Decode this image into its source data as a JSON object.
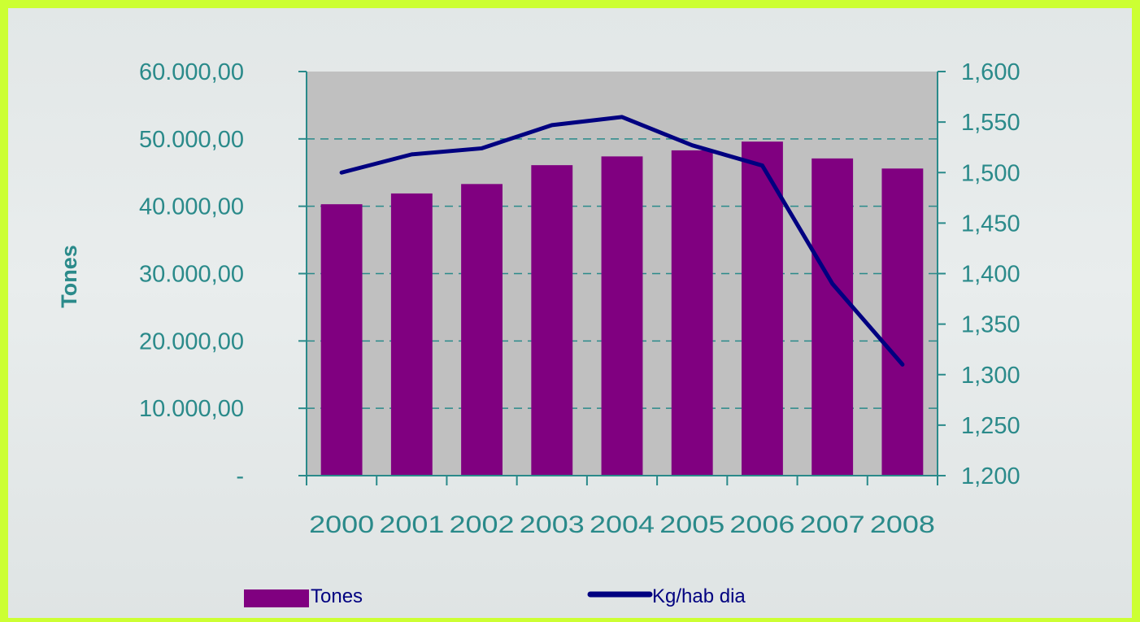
{
  "chart_data": {
    "type": "bar+line",
    "categories": [
      "2000",
      "2001",
      "2002",
      "2003",
      "2004",
      "2005",
      "2006",
      "2007",
      "2008"
    ],
    "series": [
      {
        "name": "Tones",
        "type": "bar",
        "axis": "left",
        "color": "#800080",
        "values": [
          40300,
          41900,
          43300,
          46100,
          47400,
          48300,
          49600,
          47100,
          45600
        ]
      },
      {
        "name": "Kg/hab dia",
        "type": "line",
        "axis": "right",
        "color": "#000080",
        "values": [
          1.5,
          1.518,
          1.524,
          1.547,
          1.555,
          1.527,
          1.507,
          1.39,
          1.31
        ]
      }
    ],
    "ylabel": "Tones",
    "y_left": {
      "range": [
        0,
        60000
      ],
      "ticks": [
        0,
        10000,
        20000,
        30000,
        40000,
        50000,
        60000
      ],
      "tick_labels": [
        "-",
        "10.000,00",
        "20.000,00",
        "30.000,00",
        "40.000,00",
        "50.000,00",
        "60.000,00"
      ]
    },
    "y_right": {
      "range": [
        1.2,
        1.6
      ],
      "ticks": [
        1.2,
        1.25,
        1.3,
        1.35,
        1.4,
        1.45,
        1.5,
        1.55,
        1.6
      ],
      "tick_labels": [
        "1,200",
        "1,250",
        "1,300",
        "1,350",
        "1,400",
        "1,450",
        "1,500",
        "1,550",
        "1,600"
      ]
    },
    "grid": "horizontal dashed",
    "legend_position": "bottom",
    "colors": {
      "plot_background": "#c0c0c0",
      "axis_text": "#2a8a8a",
      "grid": "#2a8a8a",
      "outer_border": "#ccff33"
    }
  }
}
